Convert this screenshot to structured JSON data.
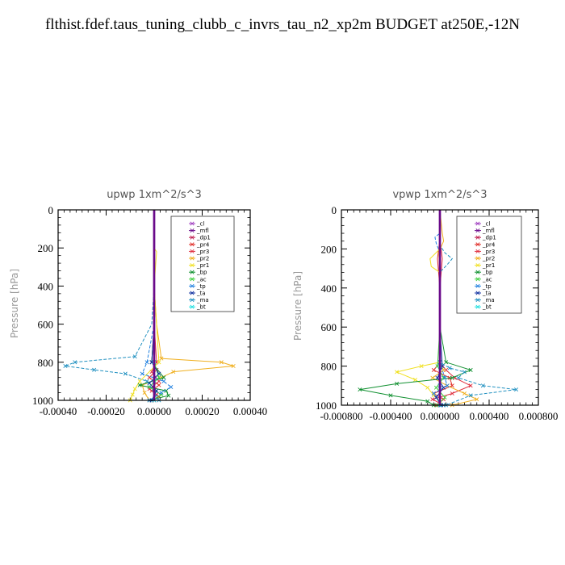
{
  "title": "flthist.fdef.taus_tuning_clubb_c_invrs_tau_n2_xp2m  BUDGET at250E,-12N",
  "legend_colors": {
    "_cl": "#a040c0",
    "_mfl": "#6a0a8a",
    "_dp1": "#c02050",
    "_pr4": "#e0302a",
    "_pr3": "#e03040",
    "_pr2": "#f0b020",
    "_pr1": "#f0e020",
    "_bp": "#109030",
    "_ac": "#40d040",
    "_tp": "#2080e0",
    "_ta": "#1030a0",
    "_ma": "#2090c0",
    "_bt": "#20e0e0"
  },
  "chart_data": [
    {
      "type": "line",
      "title": "upwp   1xm^2/s^3",
      "ylabel": "Pressure [hPa]",
      "xlabel": "",
      "xlim": [
        -0.0004,
        0.0004
      ],
      "ylim": [
        1000,
        0
      ],
      "xticks": [
        -0.0004,
        -0.0002,
        0.0,
        0.0002,
        0.0004
      ],
      "xtick_labels": [
        "-0.00040",
        "-0.00020",
        "0.00000",
        "0.00020",
        "0.00040"
      ],
      "yticks": [
        0,
        200,
        400,
        600,
        800,
        1000
      ],
      "ytick_labels": [
        "0",
        "200",
        "400",
        "600",
        "800",
        "1000"
      ],
      "legend": [
        "_cl",
        "_mfl",
        "_dp1",
        "_pr4",
        "_pr3",
        "_pr2",
        "_pr1",
        "_bp",
        "_ac",
        "_tp",
        "_ta",
        "_ma",
        "_bt"
      ],
      "legend_position": "top-right",
      "series": [
        {
          "name": "_cl",
          "x": [
            0,
            0,
            0,
            0,
            0,
            0,
            0
          ],
          "y": [
            0,
            200,
            400,
            600,
            800,
            900,
            1000
          ]
        },
        {
          "name": "_mfl",
          "x": [
            0,
            0,
            0,
            0,
            0,
            0,
            0
          ],
          "y": [
            0,
            200,
            400,
            600,
            800,
            900,
            1000
          ]
        },
        {
          "name": "_dp1",
          "x": [
            0,
            0,
            0,
            0,
            0,
            0,
            0
          ],
          "y": [
            0,
            200,
            400,
            600,
            800,
            900,
            1000
          ]
        },
        {
          "name": "_pr4",
          "x": [
            0,
            0,
            0,
            0,
            -1e-05,
            1e-05,
            -2e-05,
            2e-05,
            -1e-05,
            2e-05,
            -1e-05
          ],
          "y": [
            0,
            200,
            400,
            600,
            800,
            840,
            880,
            920,
            950,
            980,
            1000
          ]
        },
        {
          "name": "_pr3",
          "x": [
            0,
            0,
            0,
            0,
            1e-05,
            -1e-05,
            2e-05,
            -2e-05,
            1e-05,
            -1e-05
          ],
          "y": [
            0,
            200,
            400,
            600,
            800,
            850,
            900,
            940,
            970,
            1000
          ]
        },
        {
          "name": "_pr2",
          "x": [
            0,
            0,
            0,
            1e-05,
            3e-05,
            0.00028,
            0.00033,
            8e-05,
            3e-05,
            -5e-05,
            -4e-05,
            -2e-05
          ],
          "y": [
            0,
            200,
            400,
            600,
            780,
            800,
            820,
            850,
            880,
            920,
            960,
            1000
          ]
        },
        {
          "name": "_pr1",
          "x": [
            0,
            0,
            1e-05,
            0,
            2e-05,
            -6e-05,
            -8e-05,
            -9e-05,
            -0.0001
          ],
          "y": [
            0,
            200,
            220,
            400,
            800,
            900,
            940,
            970,
            1000
          ]
        },
        {
          "name": "_bp",
          "x": [
            0,
            0,
            0,
            0,
            -1e-05,
            4e-05,
            -6e-05,
            5e-05,
            6e-05,
            -2e-05
          ],
          "y": [
            0,
            200,
            400,
            600,
            800,
            880,
            920,
            950,
            975,
            1000
          ]
        },
        {
          "name": "_ac",
          "x": [
            0,
            0,
            0,
            0,
            0,
            2e-05,
            -2e-05,
            3e-05,
            -1e-05
          ],
          "y": [
            0,
            200,
            400,
            600,
            800,
            880,
            930,
            970,
            1000
          ]
        },
        {
          "name": "_tp",
          "x": [
            0,
            0,
            0,
            0,
            -3e-05,
            -5e-05,
            4e-05,
            7e-05,
            3e-05,
            -2e-05
          ],
          "y": [
            0,
            200,
            400,
            600,
            800,
            860,
            900,
            930,
            960,
            1000
          ]
        },
        {
          "name": "_ta",
          "x": [
            0,
            0,
            0,
            0,
            -1e-05,
            2e-05,
            -2e-05,
            1e-05,
            -1e-05
          ],
          "y": [
            0,
            200,
            400,
            600,
            800,
            860,
            910,
            950,
            1000
          ]
        },
        {
          "name": "_ma",
          "x": [
            0,
            0,
            0,
            -1e-05,
            -8e-05,
            -0.00033,
            -0.00037,
            -0.00025,
            -0.00012,
            -3e-05,
            2e-05
          ],
          "y": [
            0,
            200,
            400,
            600,
            770,
            800,
            820,
            840,
            860,
            900,
            1000
          ]
        },
        {
          "name": "_bt",
          "x": [
            0,
            0,
            0,
            0,
            0,
            0,
            0
          ],
          "y": [
            0,
            200,
            400,
            600,
            800,
            900,
            1000
          ]
        }
      ]
    },
    {
      "type": "line",
      "title": "vpwp   1xm^2/s^3",
      "ylabel": "Pressure [hPa]",
      "xlabel": "",
      "xlim": [
        -0.0008,
        0.0008
      ],
      "ylim": [
        1000,
        0
      ],
      "xticks": [
        -0.0008,
        -0.0004,
        0.0,
        0.0004,
        0.0008
      ],
      "xtick_labels": [
        "-0.000800",
        "-0.000400",
        "0.000000",
        "0.000400",
        "0.000800"
      ],
      "yticks": [
        0,
        200,
        400,
        600,
        800,
        1000
      ],
      "ytick_labels": [
        "0",
        "200",
        "400",
        "600",
        "800",
        "1000"
      ],
      "legend": [
        "_cl",
        "_mfl",
        "_dp1",
        "_pr4",
        "_pr3",
        "_pr2",
        "_pr1",
        "_bp",
        "_ac",
        "_tp",
        "_ta",
        "_ma",
        "_bt"
      ],
      "legend_position": "top-right",
      "series": [
        {
          "name": "_cl",
          "x": [
            0,
            0,
            0,
            0,
            0,
            0,
            0
          ],
          "y": [
            0,
            200,
            400,
            600,
            800,
            900,
            1000
          ]
        },
        {
          "name": "_mfl",
          "x": [
            0,
            0,
            0,
            0,
            0,
            0,
            0
          ],
          "y": [
            0,
            200,
            400,
            600,
            800,
            900,
            1000
          ]
        },
        {
          "name": "_dp1",
          "x": [
            0,
            0,
            0,
            0,
            0,
            0,
            0
          ],
          "y": [
            0,
            200,
            400,
            600,
            800,
            900,
            1000
          ]
        },
        {
          "name": "_pr4",
          "x": [
            0,
            0,
            -2e-05,
            0,
            0,
            -5e-05,
            8e-05,
            0.0001,
            -5e-05,
            3e-05,
            -3e-05
          ],
          "y": [
            0,
            150,
            250,
            400,
            780,
            820,
            860,
            900,
            940,
            970,
            1000
          ]
        },
        {
          "name": "_pr3",
          "x": [
            0,
            0,
            2e-05,
            0,
            0,
            5e-05,
            0.00012,
            0.00025,
            0.0001,
            -6e-05,
            3e-05
          ],
          "y": [
            0,
            150,
            250,
            400,
            780,
            820,
            860,
            900,
            940,
            970,
            1000
          ]
        },
        {
          "name": "_pr2",
          "x": [
            0,
            2e-05,
            3e-05,
            -1e-05,
            0,
            0,
            3e-05,
            -6e-05,
            6e-05,
            0.0002,
            0.0003,
            0.0001
          ],
          "y": [
            0,
            120,
            160,
            220,
            300,
            780,
            820,
            860,
            900,
            940,
            970,
            1000
          ]
        },
        {
          "name": "_pr1",
          "x": [
            0,
            0,
            -8e-05,
            -7e-05,
            0,
            0,
            -0.00015,
            -0.00035,
            -0.0002,
            -0.0001,
            -5e-05,
            3e-05
          ],
          "y": [
            0,
            200,
            250,
            290,
            320,
            780,
            800,
            830,
            870,
            910,
            950,
            1000
          ]
        },
        {
          "name": "_bp",
          "x": [
            0,
            0,
            0,
            0,
            5e-05,
            0.00025,
            0.0001,
            -0.00035,
            -0.00065,
            -0.0004,
            -0.0001,
            -5e-05
          ],
          "y": [
            0,
            200,
            400,
            600,
            780,
            820,
            860,
            890,
            920,
            950,
            980,
            1000
          ]
        },
        {
          "name": "_ac",
          "x": [
            0,
            0,
            0,
            0,
            -2e-05,
            3e-05,
            -3e-05,
            4e-05,
            -2e-05
          ],
          "y": [
            0,
            200,
            400,
            600,
            800,
            860,
            910,
            960,
            1000
          ]
        },
        {
          "name": "_tp",
          "x": [
            0,
            0,
            -4e-05,
            -3e-05,
            0,
            0,
            4e-05,
            6e-05,
            -5e-05,
            3e-05
          ],
          "y": [
            0,
            120,
            140,
            170,
            220,
            780,
            860,
            900,
            940,
            1000
          ]
        },
        {
          "name": "_ta",
          "x": [
            0,
            0,
            0,
            0,
            2e-05,
            -2e-05,
            3e-05,
            -3e-05,
            1e-05
          ],
          "y": [
            0,
            200,
            400,
            600,
            800,
            860,
            910,
            960,
            1000
          ]
        },
        {
          "name": "_ma",
          "x": [
            0,
            0,
            4e-05,
            0.0001,
            6e-05,
            0,
            0,
            8e-05,
            0.0002,
            0.00015,
            0.00035,
            0.00062,
            0.00025,
            5e-05
          ],
          "y": [
            0,
            180,
            220,
            250,
            280,
            320,
            780,
            810,
            830,
            860,
            900,
            920,
            950,
            1000
          ]
        },
        {
          "name": "_bt",
          "x": [
            0,
            0,
            0,
            0,
            0,
            0,
            0
          ],
          "y": [
            0,
            200,
            400,
            600,
            800,
            900,
            1000
          ]
        }
      ]
    }
  ]
}
